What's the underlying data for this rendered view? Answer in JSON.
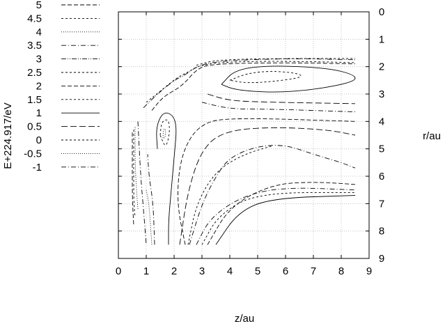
{
  "chart_data": {
    "type": "contour",
    "title": "",
    "xlabel": "z/au",
    "ylabel": "r/au",
    "zlabel": "E+224.917/eV",
    "xlim": [
      0,
      9
    ],
    "ylim": [
      9,
      0
    ],
    "y_axis_side": "right",
    "y_inverted": true,
    "grid": true,
    "legend_placement": "left",
    "x_ticks": [
      "0",
      "1",
      "2",
      "3",
      "4",
      "5",
      "6",
      "7",
      "8",
      "9"
    ],
    "y_ticks": [
      "0",
      "1",
      "2",
      "3",
      "4",
      "5",
      "6",
      "7",
      "8",
      "9"
    ],
    "levels": [
      {
        "label": "5",
        "value": 5,
        "dash": "dash"
      },
      {
        "label": "4.5",
        "value": 4.5,
        "dash": "dash-fine"
      },
      {
        "label": "4",
        "value": 4,
        "dash": "dot"
      },
      {
        "label": "3.5",
        "value": 3.5,
        "dash": "dash-dot"
      },
      {
        "label": "3",
        "value": 3,
        "dash": "dash-dot-dot"
      },
      {
        "label": "2.5",
        "value": 2.5,
        "dash": "dash-fine"
      },
      {
        "label": "2",
        "value": 2,
        "dash": "dash"
      },
      {
        "label": "1.5",
        "value": 1.5,
        "dash": "dash-fine"
      },
      {
        "label": "1",
        "value": 1,
        "dash": "solid"
      },
      {
        "label": "0.5",
        "value": 0.5,
        "dash": "dash-long"
      },
      {
        "label": "0",
        "value": 0,
        "dash": "dash-fine"
      },
      {
        "label": "-0.5",
        "value": -0.5,
        "dash": "dot"
      },
      {
        "label": "-1",
        "value": -1,
        "dash": "dash-dot"
      }
    ],
    "contours": [
      {
        "level": 5,
        "points": [
          [
            0.5,
            4.4
          ],
          [
            0.5,
            5.5
          ],
          [
            0.5,
            6.8
          ],
          [
            0.55,
            7.8
          ]
        ]
      },
      {
        "level": 4.5,
        "points": [
          [
            0.55,
            4.3
          ],
          [
            0.55,
            5.5
          ],
          [
            0.55,
            6.9
          ],
          [
            0.6,
            7.5
          ]
        ]
      },
      {
        "level": 4,
        "points": [
          [
            0.6,
            4.2
          ],
          [
            0.6,
            5.5
          ],
          [
            0.65,
            6.5
          ],
          [
            0.7,
            7.2
          ]
        ]
      },
      {
        "level": 3.5,
        "points": [
          [
            0.7,
            4.0
          ],
          [
            0.8,
            6.0
          ],
          [
            0.9,
            7.2
          ],
          [
            1.0,
            8.5
          ]
        ]
      },
      {
        "level": 3,
        "points": [
          [
            0.9,
            3.5
          ],
          [
            1.4,
            3.0
          ],
          [
            2.0,
            2.5
          ],
          [
            2.4,
            2.3
          ],
          [
            2.8,
            2.0
          ],
          [
            3.5,
            1.8
          ],
          [
            6.0,
            1.7
          ],
          [
            8.5,
            1.75
          ]
        ]
      },
      {
        "level": 2.5,
        "points": [
          [
            1.0,
            3.3
          ],
          [
            1.5,
            2.9
          ],
          [
            2.1,
            2.4
          ],
          [
            2.5,
            2.2
          ],
          [
            2.9,
            1.95
          ],
          [
            4.0,
            1.82
          ],
          [
            6.0,
            1.8
          ],
          [
            8.5,
            1.85
          ]
        ]
      },
      {
        "level": 2,
        "points": [
          [
            1.2,
            3.6
          ],
          [
            1.6,
            3.1
          ],
          [
            2.3,
            2.7
          ],
          [
            2.8,
            2.1
          ],
          [
            3.3,
            1.9
          ],
          [
            6.0,
            1.85
          ],
          [
            8.5,
            1.9
          ]
        ]
      },
      {
        "level": 1.5,
        "points": [
          [
            4.0,
            2.5
          ],
          [
            4.6,
            2.25
          ],
          [
            5.5,
            2.15
          ],
          [
            6.5,
            2.25
          ],
          [
            6.6,
            2.4
          ],
          [
            5.5,
            2.55
          ],
          [
            4.6,
            2.6
          ],
          [
            4.0,
            2.5
          ]
        ]
      },
      {
        "level": 1,
        "points": [
          [
            3.7,
            2.65
          ],
          [
            4.2,
            2.1
          ],
          [
            5.5,
            1.95
          ],
          [
            7.5,
            2.05
          ],
          [
            8.5,
            2.3
          ],
          [
            8.5,
            2.55
          ],
          [
            7.0,
            2.85
          ],
          [
            5.5,
            2.95
          ],
          [
            4.2,
            2.85
          ],
          [
            3.7,
            2.65
          ]
        ]
      },
      {
        "level": 1,
        "points": [
          [
            1.4,
            5.0
          ],
          [
            1.35,
            4.2
          ],
          [
            1.6,
            3.65
          ],
          [
            1.95,
            3.75
          ],
          [
            2.1,
            4.2
          ],
          [
            2.0,
            5.3
          ],
          [
            1.9,
            6.5
          ],
          [
            1.8,
            7.6
          ],
          [
            1.8,
            8.5
          ]
        ]
      },
      {
        "level": 0.5,
        "points": [
          [
            3.2,
            3.0
          ],
          [
            4.0,
            3.25
          ],
          [
            5.5,
            3.3
          ],
          [
            8.5,
            3.35
          ]
        ]
      },
      {
        "level": 0,
        "points": [
          [
            1.5,
            4.5
          ],
          [
            1.55,
            4.0
          ],
          [
            1.8,
            3.9
          ],
          [
            1.85,
            4.4
          ],
          [
            1.7,
            5.0
          ],
          [
            1.5,
            4.5
          ]
        ]
      },
      {
        "level": -0.5,
        "points": [
          [
            1.6,
            4.6
          ],
          [
            1.62,
            4.25
          ],
          [
            1.7,
            4.3
          ],
          [
            1.68,
            4.6
          ],
          [
            1.6,
            4.6
          ]
        ]
      },
      {
        "level": -1,
        "points": [
          [
            3.0,
            3.3
          ],
          [
            4.0,
            3.55
          ],
          [
            5.5,
            3.55
          ],
          [
            8.5,
            3.65
          ]
        ]
      },
      {
        "level": -1,
        "points": [
          [
            2.55,
            8.5
          ],
          [
            3.0,
            7.0
          ],
          [
            3.5,
            6.0
          ],
          [
            4.0,
            5.3
          ],
          [
            5.0,
            4.9
          ],
          [
            6.0,
            4.85
          ],
          [
            7.0,
            5.2
          ],
          [
            8.0,
            5.5
          ],
          [
            8.5,
            5.7
          ]
        ]
      },
      {
        "level": 0.5,
        "points": [
          [
            2.2,
            8.5
          ],
          [
            2.5,
            6.5
          ],
          [
            3.0,
            5.0
          ],
          [
            3.8,
            4.35
          ],
          [
            5.5,
            4.2
          ],
          [
            7.5,
            4.3
          ],
          [
            8.5,
            4.5
          ]
        ]
      },
      {
        "level": 1.5,
        "points": [
          [
            2.5,
            8.5
          ],
          [
            2.8,
            7.0
          ],
          [
            3.5,
            5.8
          ],
          [
            4.5,
            5.2
          ],
          [
            5.5,
            4.9
          ]
        ]
      },
      {
        "level": -1,
        "points": [
          [
            2.8,
            8.5
          ],
          [
            3.3,
            7.5
          ],
          [
            4.5,
            6.7
          ],
          [
            6.0,
            6.4
          ],
          [
            8.5,
            6.5
          ]
        ]
      },
      {
        "level": 2,
        "points": [
          [
            3.2,
            8.5
          ],
          [
            4.0,
            7.1
          ],
          [
            5.5,
            6.3
          ],
          [
            7.0,
            6.2
          ],
          [
            8.5,
            6.3
          ]
        ]
      },
      {
        "level": 1,
        "points": [
          [
            3.5,
            8.5
          ],
          [
            4.3,
            7.3
          ],
          [
            5.5,
            6.8
          ],
          [
            8.5,
            6.7
          ]
        ]
      },
      {
        "level": 2.5,
        "points": [
          [
            3.0,
            8.5
          ],
          [
            3.6,
            7.4
          ],
          [
            5.0,
            6.6
          ],
          [
            8.5,
            6.6
          ]
        ]
      },
      {
        "level": 3.5,
        "points": [
          [
            1.3,
            8.5
          ],
          [
            1.25,
            7.0
          ],
          [
            1.1,
            6.0
          ],
          [
            1.05,
            5.2
          ]
        ]
      },
      {
        "level": 4,
        "points": [
          [
            1.2,
            8.5
          ],
          [
            1.1,
            7.0
          ],
          [
            1.0,
            6.5
          ]
        ]
      },
      {
        "level": 2,
        "points": [
          [
            2.4,
            8.5
          ],
          [
            2.1,
            7.0
          ],
          [
            2.2,
            5.5
          ],
          [
            2.6,
            4.5
          ],
          [
            3.2,
            4.0
          ],
          [
            4.0,
            3.9
          ],
          [
            5.5,
            3.9
          ],
          [
            8.5,
            4.0
          ]
        ]
      },
      {
        "level": 4.5,
        "points": [
          [
            2.8,
            1.95
          ],
          [
            3.5,
            1.75
          ],
          [
            6.0,
            1.7
          ],
          [
            8.5,
            1.7
          ]
        ]
      }
    ]
  }
}
